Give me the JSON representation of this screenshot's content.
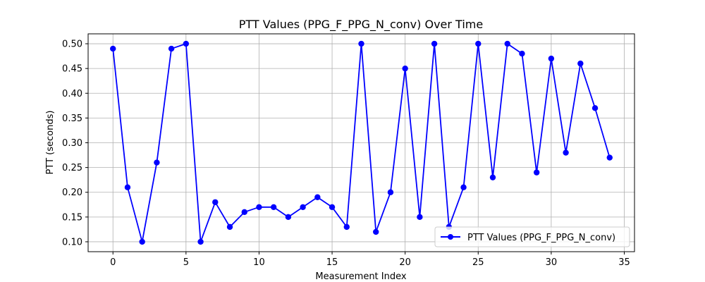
{
  "chart_data": {
    "type": "line",
    "title": "PTT Values (PPG_F_PPG_N_conv) Over Time",
    "xlabel": "Measurement Index",
    "ylabel": "PTT (seconds)",
    "xlim": [
      -1.7,
      35.7
    ],
    "ylim": [
      0.08,
      0.52
    ],
    "x_ticks": [
      0,
      5,
      10,
      15,
      20,
      25,
      30,
      35
    ],
    "y_ticks": [
      0.1,
      0.15,
      0.2,
      0.25,
      0.3,
      0.35,
      0.4,
      0.45,
      0.5
    ],
    "grid": true,
    "legend_position": "lower-right",
    "series": [
      {
        "name": "PTT Values (PPG_F_PPG_N_conv)",
        "color": "#0000ff",
        "marker": "circle",
        "x": [
          0,
          1,
          2,
          3,
          4,
          5,
          6,
          7,
          8,
          9,
          10,
          11,
          12,
          13,
          14,
          15,
          16,
          17,
          18,
          19,
          20,
          21,
          22,
          23,
          24,
          25,
          26,
          27,
          28,
          29,
          30,
          31,
          32,
          33,
          34
        ],
        "values": [
          0.49,
          0.21,
          0.1,
          0.26,
          0.49,
          0.5,
          0.1,
          0.18,
          0.13,
          0.16,
          0.17,
          0.17,
          0.15,
          0.17,
          0.19,
          0.17,
          0.13,
          0.5,
          0.12,
          0.2,
          0.45,
          0.15,
          0.5,
          0.13,
          0.21,
          0.5,
          0.23,
          0.5,
          0.48,
          0.24,
          0.47,
          0.28,
          0.46,
          0.37,
          0.27
        ]
      }
    ]
  }
}
